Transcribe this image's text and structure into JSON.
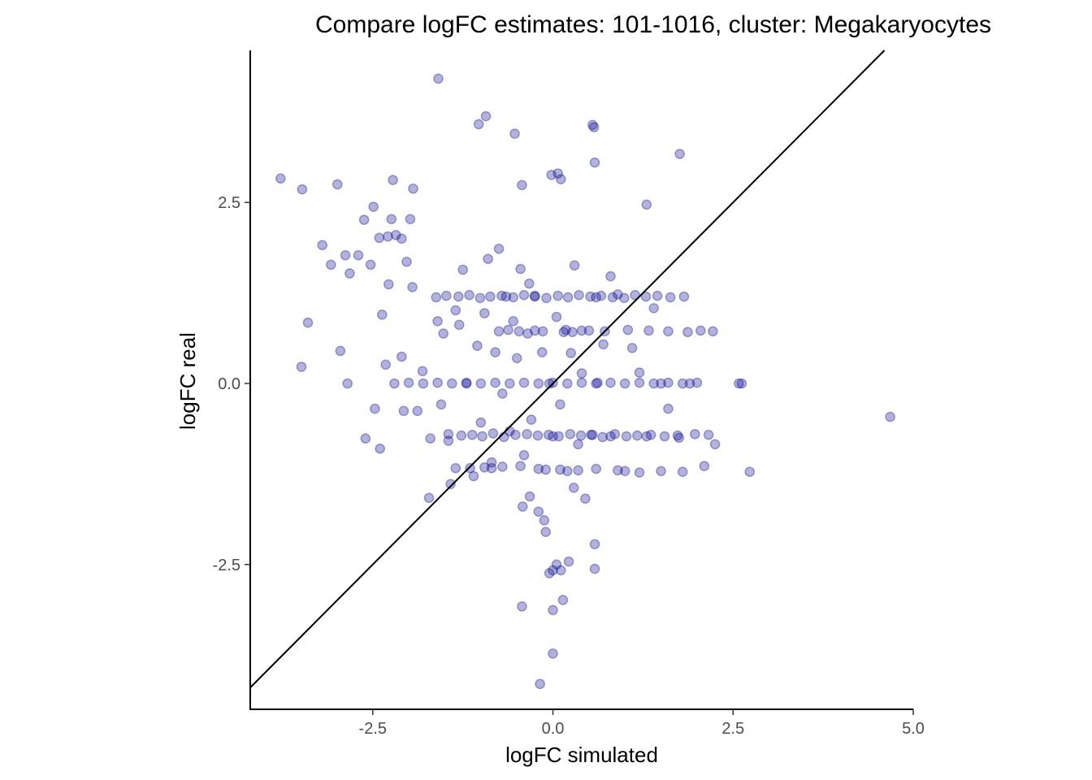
{
  "chart_data": {
    "type": "scatter",
    "title": "Compare logFC estimates: 101-1016, cluster: Megakaryocytes",
    "xlabel": "logFC simulated",
    "ylabel": "logFC real",
    "xlim": [
      -4.2,
      5.0
    ],
    "ylim": [
      -4.5,
      4.6
    ],
    "x_ticks": [
      -2.5,
      0.0,
      2.5,
      5.0
    ],
    "x_tick_labels": [
      "-2.5",
      "0.0",
      "2.5",
      "5.0"
    ],
    "y_ticks": [
      -2.5,
      0.0,
      2.5
    ],
    "y_tick_labels": [
      "-2.5",
      "0.0",
      "2.5"
    ],
    "reference_line": {
      "slope": 1,
      "intercept": 0,
      "color": "#000000"
    },
    "point_color": "#00008B",
    "point_alpha": 0.3,
    "grid": false,
    "legend": "none",
    "points": {
      "x": [
        -3.78,
        -3.48,
        -3.49,
        -3.4,
        -3.2,
        -3.08,
        -2.99,
        -2.95,
        -2.88,
        -2.85,
        -2.82,
        -2.7,
        -2.62,
        -2.6,
        -2.53,
        -2.49,
        -2.47,
        -2.41,
        -2.4,
        -2.37,
        -2.32,
        -2.29,
        -2.28,
        -2.24,
        -2.22,
        -2.18,
        -2.1,
        -2.07,
        -2.03,
        -1.98,
        -1.95,
        -1.88,
        -1.81,
        -1.72,
        -1.6,
        -1.55,
        -1.52,
        -1.45,
        -1.42,
        -1.35,
        -1.3,
        -1.25,
        -1.2,
        -1.1,
        -1.05,
        -1.0,
        -0.95,
        -0.9,
        -0.85,
        -0.8,
        -0.75,
        -0.7,
        -0.65,
        -0.6,
        -0.55,
        -0.5,
        -0.45,
        -0.4,
        -0.35,
        -0.3,
        -0.25,
        -0.2,
        -0.15,
        -0.1,
        -0.05,
        0.0,
        0.05,
        0.1,
        0.15,
        0.2,
        0.25,
        0.3,
        0.35,
        0.4,
        0.45,
        0.5,
        0.55,
        0.6,
        0.62,
        0.7,
        0.8,
        0.9,
        1.0,
        1.1,
        1.2,
        1.3,
        1.4,
        1.5,
        1.6,
        1.75,
        1.9,
        2.1,
        2.25,
        2.58,
        2.62,
        2.73,
        4.68,
        -1.35,
        -1.15,
        -0.95,
        -0.7,
        -0.45,
        -0.2,
        0.1,
        0.35,
        0.6,
        0.9,
        1.2,
        1.5,
        1.8,
        -2.2,
        -2.0,
        -1.8,
        -1.6,
        -1.4,
        -1.2,
        -1.0,
        -0.8,
        -0.6,
        -0.4,
        -0.2,
        0.0,
        0.2,
        0.4,
        0.6,
        0.8,
        1.0,
        1.2,
        1.4,
        1.6,
        1.8,
        2.0,
        -0.1,
        0.05,
        0.22,
        -0.18,
        0.0,
        0.14,
        -0.02,
        0.55,
        0.57,
        0.58,
        -1.59,
        -0.93,
        -1.03,
        -0.53,
        -0.32,
        -0.43,
        0.07,
        1.76,
        1.3,
        0.11,
        0.8,
        -0.85,
        -0.33,
        -1.7,
        -1.94,
        -2.1,
        -0.75,
        -0.62,
        -0.47,
        -0.25,
        -0.14,
        0.18,
        0.27,
        0.4,
        0.72,
        1.04,
        1.33,
        1.6,
        1.87,
        2.05,
        2.22,
        -1.45,
        -1.27,
        -1.12,
        -0.98,
        -0.83,
        -0.68,
        -0.52,
        -0.36,
        -0.21,
        -0.06,
        0.08,
        0.24,
        0.39,
        0.53,
        0.69,
        0.86,
        1.02,
        1.17,
        1.36,
        1.55,
        1.73,
        1.97,
        2.16,
        -1.62,
        -1.48,
        -1.31,
        -1.16,
        -1.01,
        -0.87,
        -0.71,
        -0.55,
        -0.4,
        -0.25,
        -0.09,
        0.07,
        0.21,
        0.36,
        0.52,
        0.67,
        0.83,
        0.99,
        1.14,
        1.29,
        1.45,
        1.63,
        1.82,
        -0.05,
        -0.42,
        0.0,
        0.58,
        -0.43,
        0.0,
        0.58,
        0.11,
        -0.12,
        0.29
      ],
      "y": [
        2.83,
        2.68,
        0.23,
        0.84,
        1.91,
        1.64,
        2.75,
        0.45,
        1.77,
        0.0,
        1.52,
        1.77,
        2.26,
        -0.76,
        1.64,
        2.44,
        -0.35,
        2.01,
        -0.9,
        0.95,
        0.26,
        2.03,
        1.37,
        2.27,
        2.81,
        2.05,
        0.37,
        -0.38,
        1.68,
        2.27,
        1.33,
        -0.38,
        0.17,
        -1.58,
        0.86,
        -0.29,
        0.69,
        -0.79,
        -1.39,
        1.01,
        0.81,
        1.57,
        0.0,
        -1.28,
        0.52,
        -0.54,
        0.97,
        1.72,
        -1.09,
        0.43,
        1.86,
        -0.14,
        1.2,
        -0.66,
        0.86,
        0.35,
        1.58,
        -0.99,
        0.69,
        -0.5,
        1.21,
        -1.77,
        0.43,
        -1.19,
        0.0,
        -0.73,
        0.92,
        -0.29,
        0.71,
        -1.21,
        0.42,
        1.63,
        -0.84,
        0.14,
        -1.59,
        0.73,
        -0.71,
        1.19,
        0.01,
        0.54,
        -0.73,
        1.23,
        -1.21,
        0.49,
        0.15,
        -0.73,
        1.04,
        0.0,
        -0.35,
        -0.75,
        0.0,
        -1.14,
        -0.84,
        0.0,
        0.0,
        -1.22,
        -0.46,
        -1.17,
        -1.17,
        -1.16,
        -1.15,
        -1.14,
        -1.18,
        -1.19,
        -1.2,
        -1.18,
        -1.2,
        -1.23,
        -1.21,
        -1.22,
        0.0,
        0.01,
        0.0,
        0.01,
        0.0,
        0.01,
        0.0,
        0.01,
        0.0,
        0.01,
        0.0,
        0.01,
        0.0,
        0.01,
        0.0,
        0.01,
        0.0,
        0.01,
        0.0,
        0.01,
        0.0,
        0.01,
        -2.05,
        -2.5,
        -2.46,
        -4.15,
        -3.13,
        -2.99,
        2.88,
        3.57,
        3.54,
        3.05,
        4.21,
        3.69,
        3.58,
        3.45,
        -1.56,
        2.74,
        2.9,
        3.17,
        2.47,
        2.82,
        1.48,
        -1.17,
        1.38,
        -0.76,
        2.69,
        2.0,
        0.72,
        0.74,
        0.72,
        0.73,
        0.72,
        0.74,
        0.71,
        0.73,
        0.72,
        0.74,
        0.73,
        0.72,
        0.71,
        0.73,
        0.72,
        -0.7,
        -0.72,
        -0.71,
        -0.73,
        -0.69,
        -0.74,
        -0.71,
        -0.7,
        -0.72,
        -0.71,
        -0.73,
        -0.7,
        -0.72,
        -0.71,
        -0.74,
        -0.7,
        -0.73,
        -0.72,
        -0.71,
        -0.73,
        -0.72,
        -0.7,
        -0.71,
        1.19,
        1.21,
        1.2,
        1.22,
        1.18,
        1.2,
        1.21,
        1.19,
        1.22,
        1.2,
        1.18,
        1.21,
        1.19,
        1.22,
        1.2,
        1.21,
        1.19,
        1.18,
        1.22,
        1.2,
        1.21,
        1.19,
        1.2,
        -2.62,
        -1.7,
        -2.58,
        -2.56,
        -3.08,
        -3.73,
        -2.22,
        -2.58,
        -1.89,
        -1.44
      ]
    }
  }
}
